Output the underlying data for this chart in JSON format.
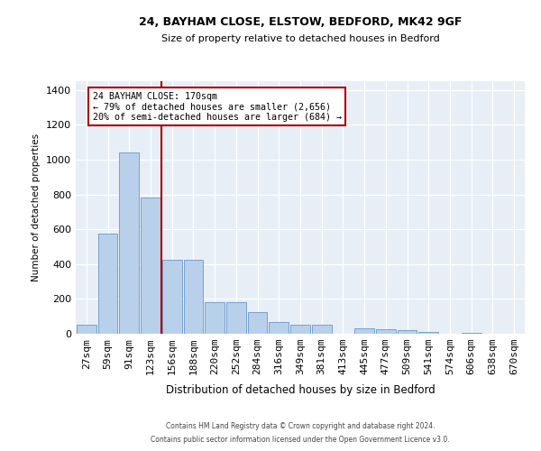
{
  "title1": "24, BAYHAM CLOSE, ELSTOW, BEDFORD, MK42 9GF",
  "title2": "Size of property relative to detached houses in Bedford",
  "xlabel": "Distribution of detached houses by size in Bedford",
  "ylabel": "Number of detached properties",
  "categories": [
    "27sqm",
    "59sqm",
    "91sqm",
    "123sqm",
    "156sqm",
    "188sqm",
    "220sqm",
    "252sqm",
    "284sqm",
    "316sqm",
    "349sqm",
    "381sqm",
    "413sqm",
    "445sqm",
    "477sqm",
    "509sqm",
    "541sqm",
    "574sqm",
    "606sqm",
    "638sqm",
    "670sqm"
  ],
  "values": [
    50,
    575,
    1040,
    780,
    425,
    425,
    180,
    180,
    125,
    65,
    50,
    50,
    0,
    30,
    25,
    20,
    10,
    0,
    5,
    0,
    0
  ],
  "bar_color": "#b8d0ea",
  "bar_edge_color": "#6699cc",
  "vline_x": 3.5,
  "vline_color": "#aa0000",
  "annotation_line1": "24 BAYHAM CLOSE: 170sqm",
  "annotation_line2": "← 79% of detached houses are smaller (2,656)",
  "annotation_line3": "20% of semi-detached houses are larger (684) →",
  "ylim": [
    0,
    1450
  ],
  "yticks": [
    0,
    200,
    400,
    600,
    800,
    1000,
    1200,
    1400
  ],
  "footer1": "Contains HM Land Registry data © Crown copyright and database right 2024.",
  "footer2": "Contains public sector information licensed under the Open Government Licence v3.0.",
  "plot_bg_color": "#e8eef5",
  "grid_color": "#d0d8e4",
  "figure_bg": "#ffffff"
}
